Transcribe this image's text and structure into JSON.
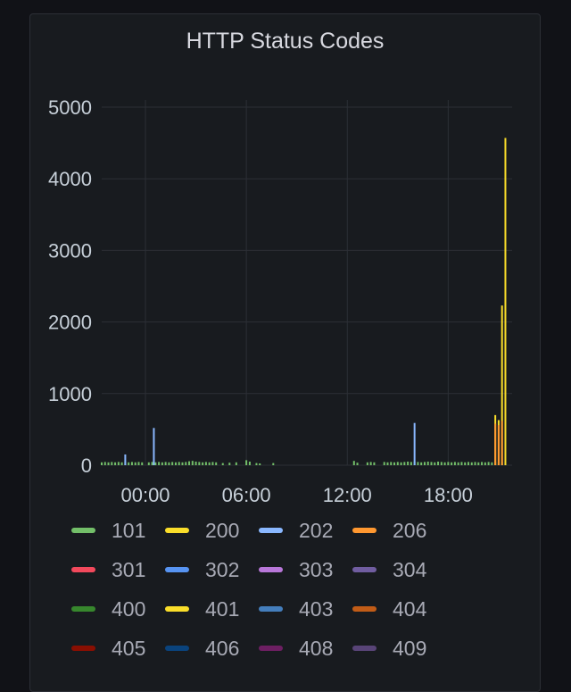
{
  "panel": {
    "title": "HTTP Status Codes"
  },
  "legend": [
    [
      {
        "code": "101",
        "color": "#73bf69"
      },
      {
        "code": "200",
        "color": "#fade2a"
      },
      {
        "code": "202",
        "color": "#8ab8ff"
      },
      {
        "code": "206",
        "color": "#ff9830"
      }
    ],
    [
      {
        "code": "301",
        "color": "#f2495c"
      },
      {
        "code": "302",
        "color": "#5794f2"
      },
      {
        "code": "303",
        "color": "#b877d9"
      },
      {
        "code": "304",
        "color": "#705da0"
      }
    ],
    [
      {
        "code": "400",
        "color": "#37872d"
      },
      {
        "code": "401",
        "color": "#fade2a"
      },
      {
        "code": "403",
        "color": "#447ebc"
      },
      {
        "code": "404",
        "color": "#c15c17"
      }
    ],
    [
      {
        "code": "405",
        "color": "#890f02"
      },
      {
        "code": "406",
        "color": "#0a437c"
      },
      {
        "code": "408",
        "color": "#6d1f62"
      },
      {
        "code": "409",
        "color": "#584477"
      }
    ]
  ],
  "chart_data": {
    "type": "bar",
    "title": "HTTP Status Codes",
    "xlabel": "",
    "ylabel": "",
    "ylim": [
      0,
      5000
    ],
    "x_range_hours": [
      -2.6,
      21.8
    ],
    "x_ticks": [
      "00:00",
      "06:00",
      "12:00",
      "18:00"
    ],
    "y_ticks": [
      0,
      1000,
      2000,
      3000,
      4000,
      5000
    ],
    "grid": true,
    "legend_placement": "bottom",
    "series": [
      {
        "name": "101",
        "color": "#73bf69",
        "points": [
          [
            -2.6,
            40
          ],
          [
            -2.4,
            45
          ],
          [
            -2.2,
            40
          ],
          [
            -2.0,
            45
          ],
          [
            -1.8,
            40
          ],
          [
            -1.6,
            45
          ],
          [
            -1.4,
            40
          ],
          [
            -1.2,
            45
          ],
          [
            -1.0,
            40
          ],
          [
            -0.8,
            45
          ],
          [
            -0.6,
            40
          ],
          [
            -0.4,
            45
          ],
          [
            -0.2,
            40
          ],
          [
            0.2,
            40
          ],
          [
            0.4,
            45
          ],
          [
            0.6,
            40
          ],
          [
            0.8,
            45
          ],
          [
            1.0,
            40
          ],
          [
            1.2,
            45
          ],
          [
            1.4,
            40
          ],
          [
            1.6,
            45
          ],
          [
            1.8,
            40
          ],
          [
            2.0,
            45
          ],
          [
            2.2,
            40
          ],
          [
            2.4,
            45
          ],
          [
            2.6,
            55
          ],
          [
            2.8,
            60
          ],
          [
            3.0,
            50
          ],
          [
            3.2,
            45
          ],
          [
            3.4,
            40
          ],
          [
            3.6,
            45
          ],
          [
            3.8,
            40
          ],
          [
            4.0,
            45
          ],
          [
            4.2,
            40
          ],
          [
            4.6,
            30
          ],
          [
            5.0,
            35
          ],
          [
            5.4,
            40
          ],
          [
            6.0,
            70
          ],
          [
            6.2,
            50
          ],
          [
            6.6,
            30
          ],
          [
            6.8,
            25
          ],
          [
            7.6,
            30
          ],
          [
            12.4,
            60
          ],
          [
            12.6,
            35
          ],
          [
            13.2,
            40
          ],
          [
            13.4,
            45
          ],
          [
            13.6,
            40
          ],
          [
            14.2,
            45
          ],
          [
            14.4,
            40
          ],
          [
            14.6,
            45
          ],
          [
            14.8,
            40
          ],
          [
            15.0,
            45
          ],
          [
            15.2,
            40
          ],
          [
            15.4,
            45
          ],
          [
            15.6,
            50
          ],
          [
            15.8,
            45
          ],
          [
            16.0,
            50
          ],
          [
            16.2,
            45
          ],
          [
            16.4,
            40
          ],
          [
            16.6,
            45
          ],
          [
            16.8,
            50
          ],
          [
            17.0,
            45
          ],
          [
            17.2,
            40
          ],
          [
            17.4,
            50
          ],
          [
            17.6,
            45
          ],
          [
            17.8,
            40
          ],
          [
            18.0,
            45
          ],
          [
            18.2,
            40
          ],
          [
            18.4,
            45
          ],
          [
            18.6,
            40
          ],
          [
            18.8,
            45
          ],
          [
            19.0,
            40
          ],
          [
            19.2,
            45
          ],
          [
            19.4,
            40
          ],
          [
            19.6,
            45
          ],
          [
            19.8,
            40
          ],
          [
            20.0,
            45
          ],
          [
            20.2,
            40
          ],
          [
            20.4,
            45
          ],
          [
            20.6,
            40
          ],
          [
            20.8,
            45
          ],
          [
            21.0,
            40
          ],
          [
            21.2,
            45
          ],
          [
            21.4,
            40
          ]
        ]
      },
      {
        "name": "202",
        "color": "#8ab8ff",
        "points": [
          [
            -1.2,
            150
          ],
          [
            0.5,
            520
          ],
          [
            16.0,
            590
          ]
        ]
      },
      {
        "name": "200",
        "color": "#fade2a",
        "points": [
          [
            20.8,
            700
          ],
          [
            21.0,
            630
          ],
          [
            21.2,
            2230
          ],
          [
            21.4,
            4570
          ]
        ]
      },
      {
        "name": "206",
        "color": "#ff9830",
        "points": [
          [
            20.8,
            580
          ],
          [
            21.0,
            560
          ],
          [
            21.2,
            620
          ]
        ]
      }
    ]
  }
}
